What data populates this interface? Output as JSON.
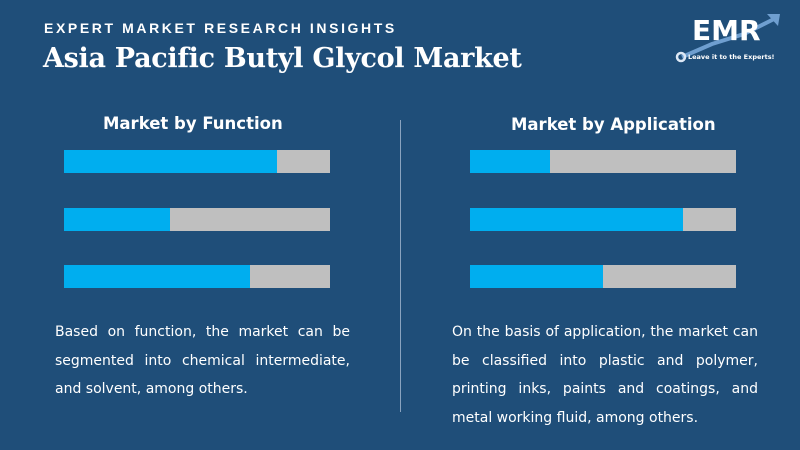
{
  "header": {
    "eyebrow": "EXPERT MARKET RESEARCH INSIGHTS",
    "title": "Asia Pacific Butyl Glycol Market"
  },
  "logo": {
    "text": "EMR",
    "tagline": "Leave it to the Experts!"
  },
  "colors": {
    "background": "#1f4e79",
    "bar_fill": "#00aeef",
    "bar_track": "#bfbfbf"
  },
  "chart_data": [
    {
      "type": "bar",
      "title": "Market by Function",
      "values": [
        0.8,
        0.4,
        0.7
      ],
      "ylim": [
        0,
        1
      ]
    },
    {
      "type": "bar",
      "title": "Market by Application",
      "values": [
        0.3,
        0.8,
        0.5
      ],
      "ylim": [
        0,
        1
      ]
    }
  ],
  "descriptions": {
    "function": "Based on function, the market can be segmented into chemical intermediate, and solvent, among others.",
    "application": "On the basis of application, the market can be classified into plastic and polymer, printing inks, paints and coatings, and metal working fluid, among others."
  }
}
